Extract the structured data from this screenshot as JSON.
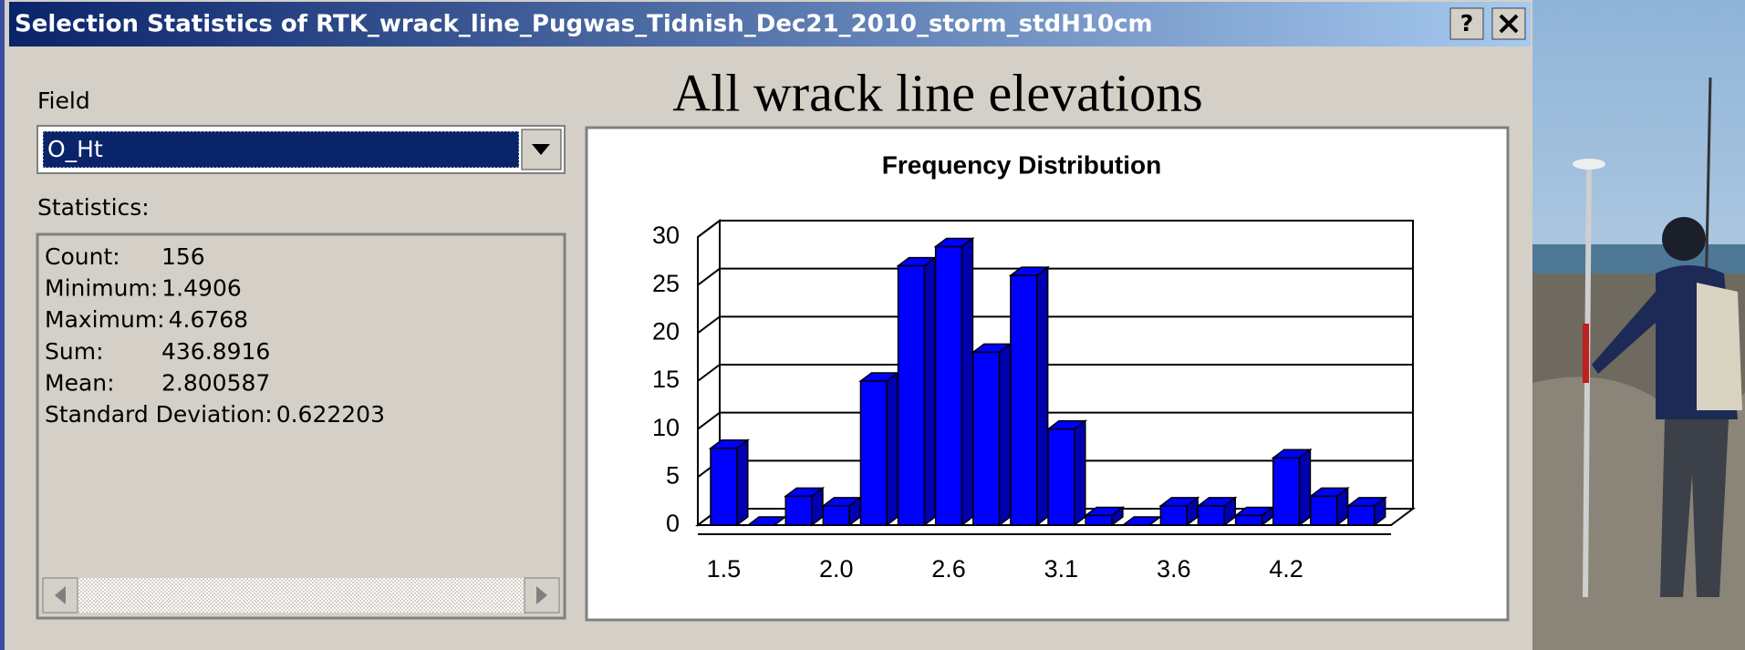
{
  "dialog": {
    "title": "Selection Statistics of RTK_wrack_line_Pugwas_Tidnish_Dec21_2010_storm_stdH10cm",
    "help_button": "?",
    "field_label": "Field",
    "field_value": "O_Ht",
    "statistics_label": "Statistics:",
    "statistics": [
      {
        "label": "Count:",
        "value": 156
      },
      {
        "label": "Minimum:",
        "value": 1.4906
      },
      {
        "label": "Maximum:",
        "value": 4.6768
      },
      {
        "label": "Sum:",
        "value": 436.8916
      },
      {
        "label": "Mean:",
        "value": 2.800587
      },
      {
        "label": "Standard Deviation:",
        "value": 0.622203
      }
    ]
  },
  "heading": "All wrack line elevations",
  "chart_data": {
    "type": "bar",
    "title": "Frequency Distribution",
    "categories": [
      "1.5",
      null,
      null,
      "2.0",
      null,
      null,
      "2.6",
      null,
      null,
      "3.1",
      null,
      null,
      "3.6",
      null,
      null,
      "4.2",
      null,
      null
    ],
    "values": [
      8,
      0,
      3,
      2,
      15,
      27,
      29,
      18,
      26,
      10,
      1,
      0,
      2,
      2,
      1,
      7,
      3,
      2
    ],
    "color": "#0000ff",
    "ylim": [
      0,
      30
    ],
    "yticks": [
      0,
      5,
      10,
      15,
      20,
      25,
      30
    ],
    "grid": true
  }
}
